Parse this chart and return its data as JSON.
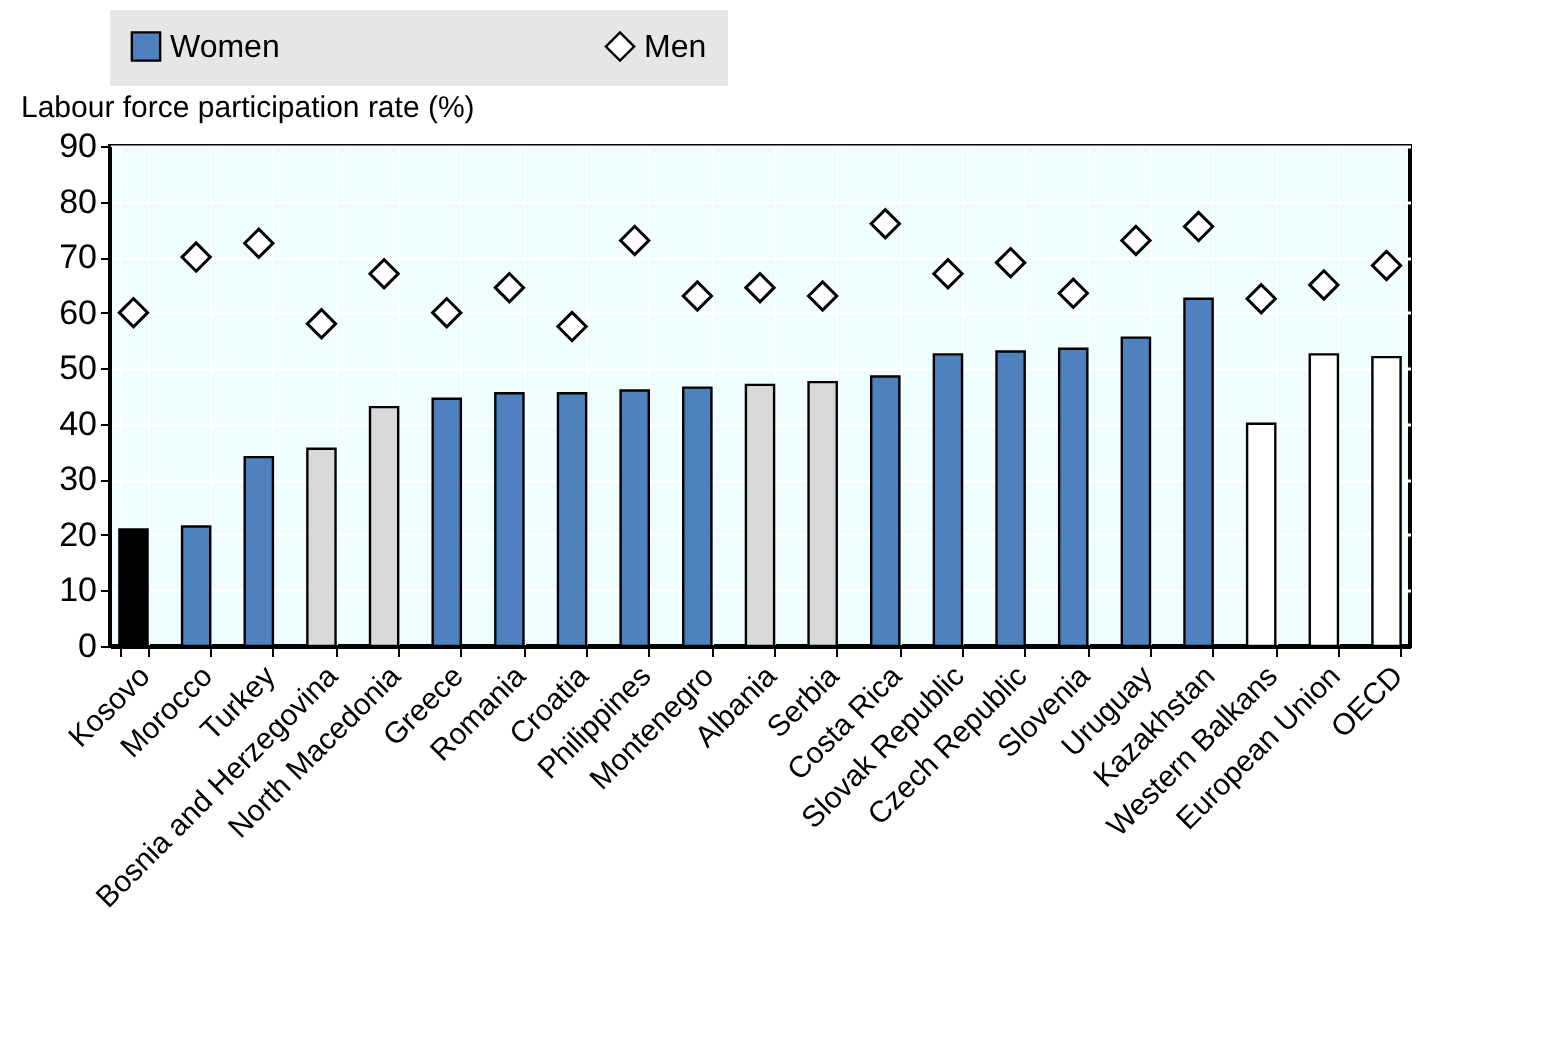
{
  "chart_data": {
    "type": "bar",
    "ylabel": "Labour force participation rate (%)",
    "categories": [
      "Kosovo",
      "Morocco",
      "Turkey",
      "Bosnia and Herzegovina",
      "North Macedonia",
      "Greece",
      "Romania",
      "Croatia",
      "Philippines",
      "Montenegro",
      "Albania",
      "Serbia",
      "Costa Rica",
      "Slovak Republic",
      "Czech Republic",
      "Slovenia",
      "Uruguay",
      "Kazakhstan",
      "Western Balkans",
      "European Union",
      "OECD"
    ],
    "series": [
      {
        "name": "Women",
        "color": "#4e81bd",
        "colors": [
          "#000000",
          "#4e81bd",
          "#4e81bd",
          "#d9d9d9",
          "#d9d9d9",
          "#4e81bd",
          "#4e81bd",
          "#4e81bd",
          "#4e81bd",
          "#4e81bd",
          "#d9d9d9",
          "#d9d9d9",
          "#4e81bd",
          "#4e81bd",
          "#4e81bd",
          "#4e81bd",
          "#4e81bd",
          "#4e81bd",
          "#ffffff",
          "#ffffff",
          "#ffffff"
        ],
        "values": [
          21,
          21.5,
          34,
          35.5,
          43,
          44.5,
          45.5,
          45.5,
          46,
          46.5,
          47,
          47.5,
          48.5,
          52.5,
          53,
          53.5,
          55.5,
          62.5,
          40,
          52.5,
          52
        ]
      },
      {
        "name": "Men",
        "type": "scatter",
        "marker": "diamond",
        "color": "#ffffff",
        "values": [
          60,
          70,
          72.5,
          58,
          67,
          60,
          64.5,
          57.5,
          73,
          63,
          64.5,
          63,
          76,
          67,
          69,
          63.5,
          73,
          75.5,
          62.5,
          65,
          68.5
        ]
      }
    ],
    "ylim": [
      0,
      90
    ],
    "yticks": [
      0,
      10,
      20,
      30,
      40,
      50,
      60,
      70,
      80,
      90
    ],
    "grid": true,
    "legend": "top"
  }
}
